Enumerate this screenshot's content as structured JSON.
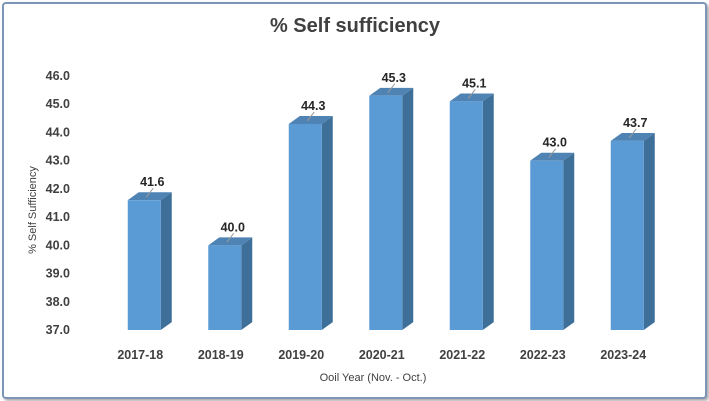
{
  "chart_data": {
    "type": "bar",
    "title": "% Self sufficiency",
    "xlabel": "Ooil Year (Nov. - Oct.)",
    "ylabel": "% Self Sufficiency",
    "categories": [
      "2017-18",
      "2018-19",
      "2019-20",
      "2020-21",
      "2021-22",
      "2022-23",
      "2023-24"
    ],
    "values": [
      41.6,
      40.0,
      44.3,
      45.3,
      45.1,
      43.0,
      43.7
    ],
    "value_labels": [
      "41.6",
      "40.0",
      "44.3",
      "45.3",
      "45.1",
      "43.0",
      "43.7"
    ],
    "y_ticks": [
      "37.0",
      "38.0",
      "39.0",
      "40.0",
      "41.0",
      "42.0",
      "43.0",
      "44.0",
      "45.0",
      "46.0"
    ],
    "ylim": [
      37,
      46
    ],
    "grid": false,
    "legend": "none",
    "style": "3d-column",
    "colors": {
      "bar_front": "#5b9bd5",
      "bar_side": "#3e6f99",
      "bar_top": "#4f83b3",
      "border": "#7f95b5",
      "text": "#404040"
    }
  }
}
